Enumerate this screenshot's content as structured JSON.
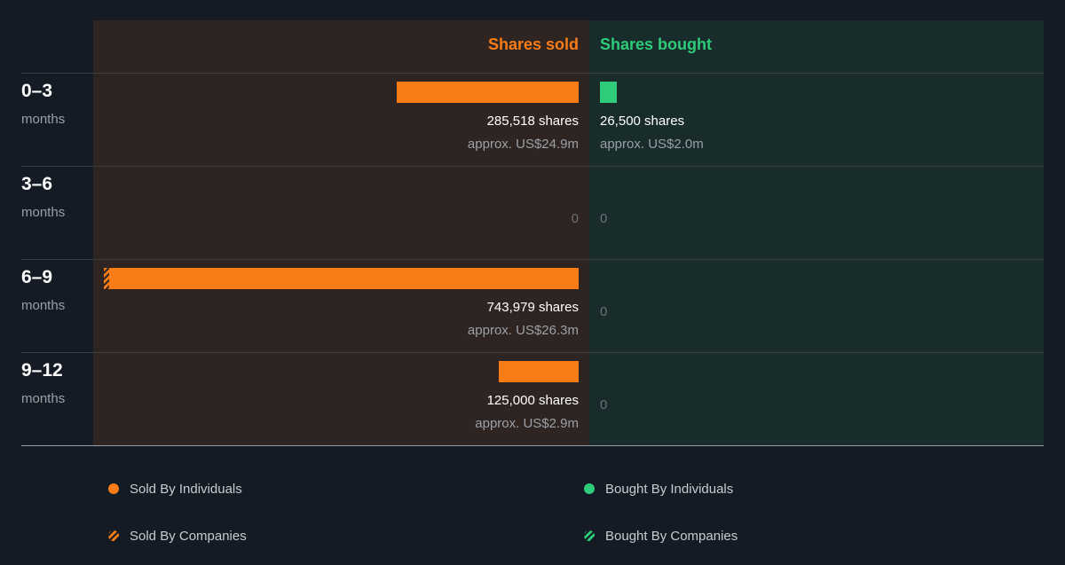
{
  "chart_data": {
    "type": "bar",
    "columns": {
      "sold": "Shares sold",
      "bought": "Shares bought"
    },
    "categories": [
      {
        "period": "0–3",
        "unit": "months"
      },
      {
        "period": "3–6",
        "unit": "months"
      },
      {
        "period": "6–9",
        "unit": "months"
      },
      {
        "period": "9–12",
        "unit": "months"
      }
    ],
    "series": [
      {
        "name": "Shares sold",
        "values": [
          285518,
          0,
          743979,
          125000
        ]
      },
      {
        "name": "Shares bought",
        "values": [
          26500,
          0,
          0,
          0
        ]
      }
    ],
    "labels": {
      "sold": [
        {
          "shares": "285,518 shares",
          "approx": "approx. US$24.9m"
        },
        {
          "shares": "0",
          "approx": ""
        },
        {
          "shares": "743,979 shares",
          "approx": "approx. US$26.3m"
        },
        {
          "shares": "125,000 shares",
          "approx": "approx. US$2.9m"
        }
      ],
      "bought": [
        {
          "shares": "26,500 shares",
          "approx": "approx. US$2.0m"
        },
        {
          "shares": "0",
          "approx": ""
        },
        {
          "shares": "0",
          "approx": ""
        },
        {
          "shares": "0",
          "approx": ""
        }
      ]
    },
    "company_sold_share": [
      0,
      0,
      0.01,
      0
    ],
    "legend": [
      {
        "label": "Sold By Individuals",
        "kind": "dot",
        "color": "#f97c16"
      },
      {
        "label": "Bought By Individuals",
        "kind": "dot",
        "color": "#2ecc7a"
      },
      {
        "label": "Sold By Companies",
        "kind": "hatch",
        "color": "#f97c16"
      },
      {
        "label": "Bought By Companies",
        "kind": "hatch",
        "color": "#2ecc7a"
      }
    ],
    "colors": {
      "sold": "#f97c16",
      "bought": "#2ecc7a"
    },
    "legend_position": "bottom"
  }
}
